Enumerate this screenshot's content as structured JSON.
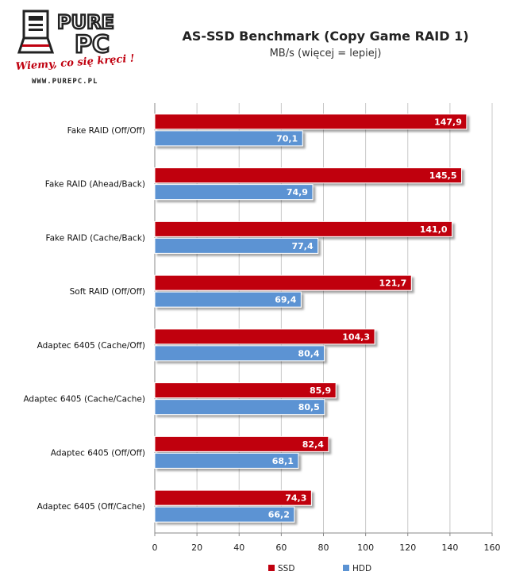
{
  "logo": {
    "line1": "PURE",
    "line2": "PC",
    "slogan": "Wiemy, co się kręci !",
    "url": "WWW.PUREPC.PL"
  },
  "colors": {
    "ssd": "#c0000f",
    "hdd": "#5b93d3",
    "grid": "#c8c8c8",
    "axis": "#888888"
  },
  "chart_data": {
    "type": "bar",
    "orientation": "horizontal",
    "title": "AS-SSD Benchmark (Copy Game RAID 1)",
    "subtitle": "MB/s (więcej = lepiej)",
    "categories": [
      "Fake RAID (Off/Off)",
      "Fake RAID (Ahead/Back)",
      "Fake RAID (Cache/Back)",
      "Soft RAID (Off/Off)",
      "Adaptec 6405 (Cache/Off)",
      "Adaptec 6405 (Cache/Cache)",
      "Adaptec 6405 (Off/Off)",
      "Adaptec 6405 (Off/Cache)"
    ],
    "series": [
      {
        "name": "SSD",
        "values": [
          147.9,
          145.5,
          141.0,
          121.7,
          104.3,
          85.9,
          82.4,
          74.3
        ],
        "labels": [
          "147,9",
          "145,5",
          "141,0",
          "121,7",
          "104,3",
          "85,9",
          "82,4",
          "74,3"
        ]
      },
      {
        "name": "HDD",
        "values": [
          70.1,
          74.9,
          77.4,
          69.4,
          80.4,
          80.5,
          68.1,
          66.2
        ],
        "labels": [
          "70,1",
          "74,9",
          "77,4",
          "69,4",
          "80,4",
          "80,5",
          "68,1",
          "66,2"
        ]
      }
    ],
    "xlim": [
      0,
      160
    ],
    "xticks": [
      0,
      20,
      40,
      60,
      80,
      100,
      120,
      140,
      160
    ],
    "grid": true,
    "legend_position": "bottom"
  }
}
